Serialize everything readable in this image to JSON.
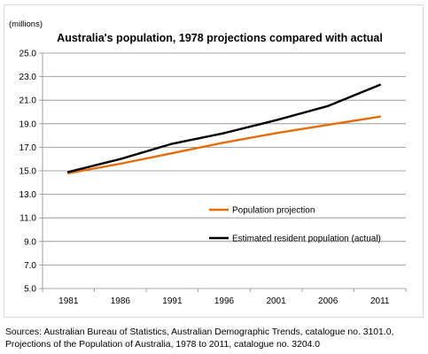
{
  "chart_data": {
    "type": "line",
    "title": "Australia's population, 1978 projections compared with actual",
    "unit_label": "(millions)",
    "x": [
      "1981",
      "1986",
      "1991",
      "1996",
      "2001",
      "2006",
      "2011"
    ],
    "ylim": [
      5.0,
      25.0
    ],
    "yticks": [
      "5.0",
      "7.0",
      "9.0",
      "11.0",
      "13.0",
      "15.0",
      "17.0",
      "19.0",
      "21.0",
      "23.0",
      "25.0"
    ],
    "grid": "horizontal",
    "legend_position": "lower-right inside plot",
    "series": [
      {
        "name": "Population projection",
        "color": "#e46c0a",
        "values": [
          14.8,
          15.6,
          16.5,
          17.4,
          18.2,
          18.9,
          19.6
        ]
      },
      {
        "name": "Estimated resident population (actual)",
        "color": "#000000",
        "values": [
          14.9,
          16.0,
          17.3,
          18.2,
          19.3,
          20.5,
          22.3
        ]
      }
    ]
  },
  "footer": {
    "sources": "Sources: Australian Bureau of Statistics, Australian Demographic Trends, catalogue no. 3101.0, Projections of the Population of Australia, 1978 to 2011, catalogue no. 3204.0"
  }
}
